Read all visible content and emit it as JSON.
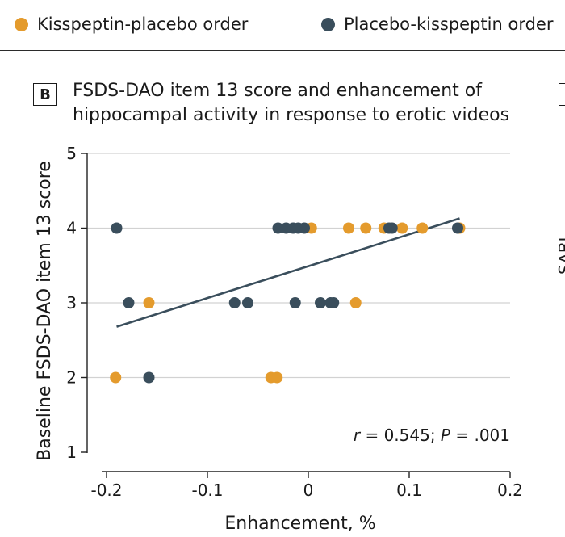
{
  "legend": {
    "items": [
      {
        "label": "Kisspeptin-placebo order",
        "color": "#E49B2D"
      },
      {
        "label": "Placebo-kisspeptin order",
        "color": "#3A4E5C"
      }
    ]
  },
  "panel": {
    "letter": "B",
    "title_line1": "FSDS-DAO item 13 score and enhancement of",
    "title_line2": "hippocampal activity in response to erotic videos",
    "side_label_fragment": "SABI"
  },
  "chart_data": {
    "type": "scatter",
    "xlabel": "Enhancement, %",
    "ylabel": "Baseline FSDS-DAO item 13 score",
    "xlim": [
      -0.2,
      0.2
    ],
    "ylim": [
      1,
      5
    ],
    "xticks": [
      -0.2,
      -0.1,
      0,
      0.1,
      0.2
    ],
    "xtick_labels": [
      "-0.2",
      "-0.1",
      "0",
      "0.1",
      "0.2"
    ],
    "yticks": [
      1,
      2,
      3,
      4,
      5
    ],
    "ytick_labels": [
      "1",
      "2",
      "3",
      "4",
      "5"
    ],
    "grid": "horizontal",
    "annotation": {
      "r_symbol": "r",
      "r_text": " = 0.545; ",
      "p_symbol": "P",
      "p_text": " = .001"
    },
    "series": [
      {
        "name": "Kisspeptin-placebo order",
        "color": "#E49B2D",
        "points": [
          [
            -0.191,
            2
          ],
          [
            -0.158,
            3
          ],
          [
            -0.037,
            2
          ],
          [
            -0.031,
            2
          ],
          [
            0.003,
            4
          ],
          [
            0.04,
            4
          ],
          [
            0.057,
            4
          ],
          [
            0.075,
            4
          ],
          [
            0.093,
            4
          ],
          [
            0.113,
            4
          ],
          [
            0.15,
            4
          ],
          [
            0.047,
            3
          ]
        ]
      },
      {
        "name": "Placebo-kisspeptin order",
        "color": "#3A4E5C",
        "points": [
          [
            -0.19,
            4
          ],
          [
            -0.178,
            3
          ],
          [
            -0.158,
            2
          ],
          [
            -0.073,
            3
          ],
          [
            -0.06,
            3
          ],
          [
            -0.03,
            4
          ],
          [
            -0.022,
            4
          ],
          [
            -0.015,
            4
          ],
          [
            -0.01,
            4
          ],
          [
            -0.004,
            4
          ],
          [
            -0.013,
            3
          ],
          [
            0.012,
            3
          ],
          [
            0.022,
            3
          ],
          [
            0.025,
            3
          ],
          [
            0.08,
            4
          ],
          [
            0.083,
            4
          ],
          [
            0.148,
            4
          ]
        ]
      }
    ],
    "fit_line": {
      "x": [
        -0.19,
        0.15
      ],
      "y": [
        2.68,
        4.13
      ],
      "color": "#3A4E5C"
    }
  }
}
